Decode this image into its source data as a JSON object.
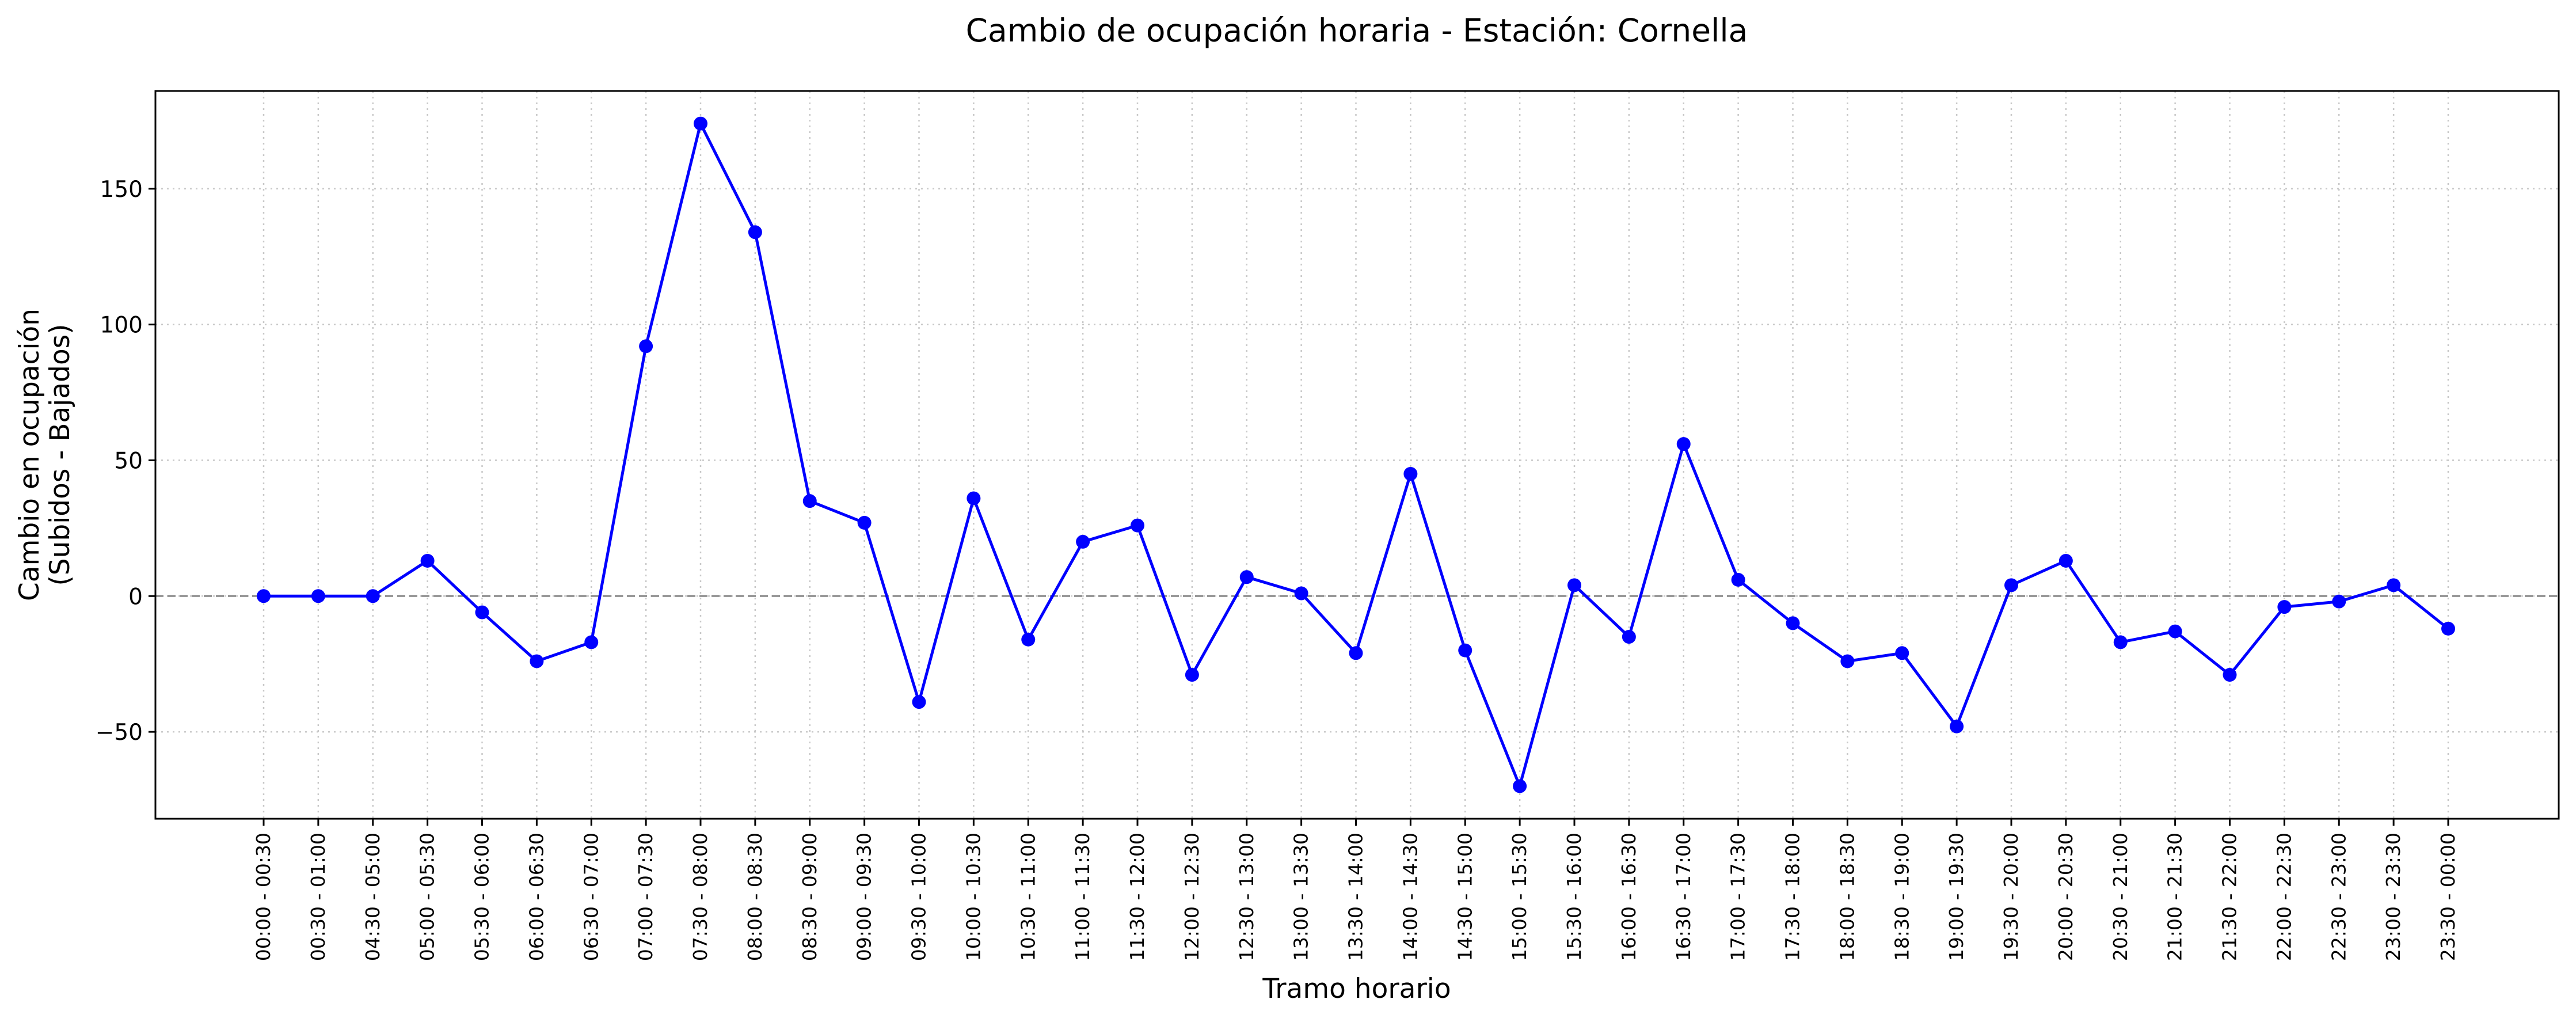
{
  "chart_data": {
    "type": "line",
    "title": "Cambio de ocupación horaria - Estación: Cornella",
    "xlabel": "Tramo horario",
    "ylabel_lines": [
      "Cambio en ocupación",
      "(Subidos - Bajados)"
    ],
    "categories": [
      "00:00 - 00:30",
      "00:30 - 01:00",
      "04:30 - 05:00",
      "05:00 - 05:30",
      "05:30 - 06:00",
      "06:00 - 06:30",
      "06:30 - 07:00",
      "07:00 - 07:30",
      "07:30 - 08:00",
      "08:00 - 08:30",
      "08:30 - 09:00",
      "09:00 - 09:30",
      "09:30 - 10:00",
      "10:00 - 10:30",
      "10:30 - 11:00",
      "11:00 - 11:30",
      "11:30 - 12:00",
      "12:00 - 12:30",
      "12:30 - 13:00",
      "13:00 - 13:30",
      "13:30 - 14:00",
      "14:00 - 14:30",
      "14:30 - 15:00",
      "15:00 - 15:30",
      "15:30 - 16:00",
      "16:00 - 16:30",
      "16:30 - 17:00",
      "17:00 - 17:30",
      "17:30 - 18:00",
      "18:00 - 18:30",
      "18:30 - 19:00",
      "19:00 - 19:30",
      "19:30 - 20:00",
      "20:00 - 20:30",
      "20:30 - 21:00",
      "21:00 - 21:30",
      "21:30 - 22:00",
      "22:00 - 22:30",
      "22:30 - 23:00",
      "23:00 - 23:30",
      "23:30 - 00:00"
    ],
    "series": [
      {
        "values": [
          0,
          0,
          0,
          13,
          -6,
          -24,
          -17,
          92,
          174,
          134,
          35,
          27,
          -39,
          36,
          -16,
          20,
          26,
          -29,
          7,
          1,
          -21,
          45,
          -20,
          -70,
          4,
          -15,
          56,
          6,
          -10,
          -24,
          -21,
          -48,
          4,
          13,
          -17,
          -13,
          -29,
          -4,
          -2,
          4,
          -12
        ],
        "color": "#0000ff",
        "marker": "circle"
      }
    ],
    "ylim": [
      -82,
      186
    ],
    "yticks": [
      -50,
      0,
      50,
      100,
      150
    ],
    "reference_line": {
      "y": 0,
      "style": "dashed",
      "color": "#808080"
    },
    "grid": true
  }
}
